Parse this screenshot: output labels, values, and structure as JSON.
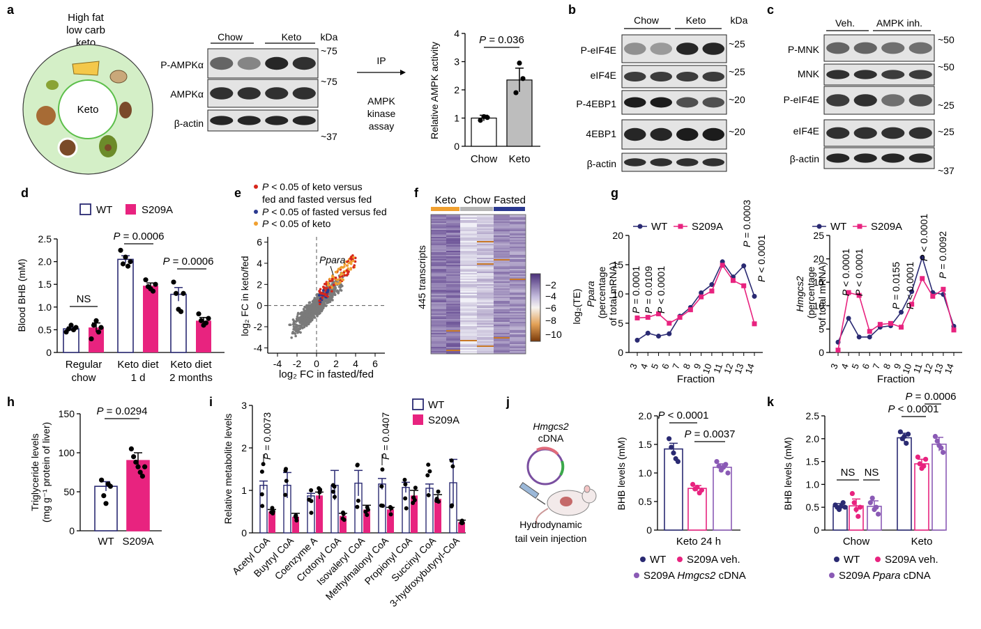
{
  "colors": {
    "wt": "#2a2a72",
    "s209a": "#e8237f",
    "hmgcs2": "#8a5ab5",
    "gray": "#6b6b6b",
    "sig_red": "#d7261b",
    "sig_blue": "#2b3990",
    "sig_orange": "#f0a030",
    "heat_dark": "#5a3d8a",
    "heat_light": "#f2f2f8",
    "heat_orange": "#c87826"
  },
  "panels": {
    "a": "a",
    "b": "b",
    "c": "c",
    "d": "d",
    "e": "e",
    "f": "f",
    "g": "g",
    "h": "h",
    "i": "i",
    "j": "j",
    "k": "k"
  },
  "panel_a": {
    "diet_title": [
      "High fat",
      "low carb",
      "keto"
    ],
    "center": "Keto",
    "blot_groups": [
      "Chow",
      "Keto"
    ],
    "blot_rows": [
      "P-AMPKα",
      "AMPKα",
      "β-actin"
    ],
    "kda_header": "kDa",
    "kda_marks": [
      "~75",
      "~75",
      "~37"
    ],
    "arrow_top": "IP",
    "arrow_bottom": [
      "AMPK",
      "kinase",
      "assay"
    ]
  },
  "panel_b": {
    "groups": [
      "Chow",
      "Keto"
    ],
    "rows": [
      "P-eIF4E",
      "eIF4E",
      "P-4EBP1",
      "4EBP1",
      "β-actin"
    ],
    "kda_header": "kDa",
    "kda_marks": [
      "~25",
      "~25",
      "~20",
      "~20"
    ]
  },
  "panel_c": {
    "groups": [
      "Veh.",
      "AMPK inh."
    ],
    "rows": [
      "P-MNK",
      "MNK",
      "P-eIF4E",
      "eIF4E",
      "β-actin"
    ],
    "kda_marks": [
      "~50",
      "~50",
      "~25",
      "~25",
      "~37"
    ]
  },
  "chart_data": [
    {
      "panel": "a",
      "type": "bar",
      "categories": [
        "Chow",
        "Keto"
      ],
      "values": [
        1.0,
        2.35
      ],
      "errors": [
        0.1,
        0.42
      ],
      "points": [
        [
          0.92,
          1.05,
          1.02
        ],
        [
          1.9,
          2.95,
          2.4
        ]
      ],
      "ylabel": "Relative AMPK activity",
      "ylim": [
        0,
        4
      ],
      "yticks": [
        0,
        1,
        2,
        3,
        4
      ],
      "annotation": "P = 0.036"
    },
    {
      "panel": "d",
      "type": "bar",
      "categories": [
        [
          "Regular",
          "chow"
        ],
        [
          "Keto diet",
          "1 d"
        ],
        [
          "Keto diet",
          "2 months"
        ]
      ],
      "series": [
        {
          "name": "WT",
          "values": [
            0.52,
            2.05,
            1.28
          ],
          "errors": [
            0.04,
            0.08,
            0.15
          ]
        },
        {
          "name": "S209A",
          "values": [
            0.55,
            1.47,
            0.7
          ],
          "errors": [
            0.1,
            0.06,
            0.07
          ]
        }
      ],
      "points": [
        [
          [
            0.45,
            0.52,
            0.6,
            0.5,
            0.55
          ],
          [
            0.3,
            0.6,
            0.7,
            0.45,
            0.55
          ]
        ],
        [
          [
            2.25,
            1.95,
            2.1,
            1.9,
            2.0
          ],
          [
            1.6,
            1.45,
            1.4,
            1.35,
            1.5
          ]
        ],
        [
          [
            1.55,
            1.3,
            0.95,
            0.9,
            1.3
          ],
          [
            0.85,
            0.7,
            0.6,
            0.65,
            0.75
          ]
        ]
      ],
      "ylabel": "Blood BHB (mM)",
      "ylim": [
        0,
        2.5
      ],
      "yticks": [
        "0",
        "0.5",
        "1.0",
        "1.5",
        "2.0",
        "2.5"
      ],
      "annotations": [
        "NS",
        "P = 0.0006",
        "P = 0.0006"
      ]
    },
    {
      "panel": "e",
      "type": "scatter",
      "xlabel": "log2 FC in fasted/fed",
      "ylabel": "log2 FC in keto/fed",
      "xlim": [
        -5,
        7
      ],
      "ylim": [
        -4.5,
        6.5
      ],
      "xticks": [
        -4,
        -2,
        0,
        2,
        4,
        6
      ],
      "yticks": [
        -4,
        -2,
        0,
        2,
        4,
        6
      ],
      "legend": [
        "P < 0.05 of keto versus fed and fasted versus fed",
        "P < 0.05 of fasted versus fed",
        "P < 0.05 of keto"
      ],
      "annotation": "Ppara"
    },
    {
      "panel": "f",
      "type": "heatmap",
      "groups": [
        "Keto",
        "Chow",
        "Fasted"
      ],
      "ylabel": "445 transcripts",
      "colorbar_label": "log2(TE)",
      "colorbar_ticks": [
        -2,
        -4,
        -6,
        -8,
        -10
      ]
    },
    {
      "panel": "g-left",
      "type": "line",
      "xlabel": "Fraction",
      "ylabel": "Ppara (percentage of total mRNA)",
      "x": [
        3,
        4,
        5,
        6,
        7,
        8,
        9,
        10,
        11,
        12,
        13,
        14
      ],
      "ylim": [
        0,
        20
      ],
      "yticks": [
        0,
        5,
        10,
        15,
        20
      ],
      "series": [
        {
          "name": "WT",
          "values": [
            2.1,
            3.3,
            2.8,
            3.2,
            6.2,
            7.7,
            10.2,
            11.6,
            15.5,
            12.9,
            14.8,
            9.6
          ]
        },
        {
          "name": "S209A",
          "values": [
            5.9,
            6.0,
            6.6,
            5.0,
            6.0,
            7.3,
            9.5,
            10.5,
            14.9,
            12.3,
            11.4,
            4.9
          ]
        }
      ],
      "pvalues": [
        "P = 0.0001",
        "P = 0.0109",
        "P < 0.0001",
        "P = 0.0003",
        "P < 0.0001"
      ]
    },
    {
      "panel": "g-right",
      "type": "line",
      "xlabel": "Fraction",
      "ylabel": "Hmgcs2 (percentage of total mRNA)",
      "x": [
        3,
        4,
        5,
        6,
        7,
        8,
        9,
        10,
        11,
        12,
        13,
        14
      ],
      "ylim": [
        0,
        25
      ],
      "yticks": [
        0,
        5,
        10,
        15,
        20,
        25
      ],
      "series": [
        {
          "name": "WT",
          "values": [
            2.2,
            7.3,
            3.3,
            3.3,
            5.4,
            5.7,
            8.6,
            13.0,
            20.3,
            12.8,
            12.4,
            5.6
          ]
        },
        {
          "name": "S209A",
          "values": [
            0.5,
            12.8,
            12.2,
            4.5,
            6.0,
            6.2,
            5.4,
            10.3,
            15.8,
            12.0,
            13.5,
            4.8
          ]
        }
      ],
      "pvalues": [
        "P < 0.0001",
        "P < 0.0001",
        "P = 0.0155",
        "P < 0.0001",
        "P < 0.0001",
        "P = 0.0092"
      ]
    },
    {
      "panel": "h",
      "type": "bar",
      "categories": [
        "WT",
        "S209A"
      ],
      "values": [
        57,
        90
      ],
      "errors": [
        6,
        10
      ],
      "points": [
        [
          65,
          45,
          35,
          60,
          57
        ],
        [
          105,
          95,
          88,
          82,
          75,
          70,
          82
        ]
      ],
      "ylabel": "Triglyceride levels (mg g−1 protein of liver)",
      "ylim": [
        0,
        150
      ],
      "yticks": [
        0,
        50,
        100,
        150
      ],
      "annotation": "P = 0.0294"
    },
    {
      "panel": "i",
      "type": "bar",
      "ylabel": "Relative metabolite levels",
      "ylim": [
        0,
        3
      ],
      "yticks": [
        0,
        1,
        2,
        3
      ],
      "categories": [
        "Acetyl CoA",
        "Buytryl CoA",
        "Coenzyme A",
        "Crotonyl CoA",
        "Isovaleryl CoA",
        "Methylmalonyl CoA",
        "Propionyl CoA",
        "Succinyl CoA",
        "3-hydroxybutyryl-CoA"
      ],
      "series": [
        {
          "name": "WT",
          "values": [
            1.12,
            1.12,
            0.87,
            1.12,
            1.17,
            1.15,
            1.07,
            1.05,
            1.18
          ],
          "errors": [
            0.1,
            0.3,
            0.06,
            0.35,
            0.3,
            0.13,
            0.12,
            0.1,
            0.55
          ]
        },
        {
          "name": "S209A",
          "values": [
            0.5,
            0.38,
            0.88,
            0.4,
            0.55,
            0.55,
            0.88,
            0.8,
            0.25
          ],
          "errors": [
            0.05,
            0.08,
            0.08,
            0.06,
            0.1,
            0.05,
            0.12,
            0.1,
            0.05
          ]
        }
      ],
      "pvalues": [
        "P = 0.0073",
        "P = 0.0407"
      ]
    },
    {
      "panel": "j",
      "type": "bar",
      "categories": [
        "WT",
        "S209A veh.",
        "S209A Hmgcs2 cDNA"
      ],
      "xlabel": "Keto 24 h",
      "values": [
        1.42,
        0.73,
        1.1
      ],
      "errors": [
        0.1,
        0.05,
        0.06
      ],
      "points": [
        [
          1.6,
          1.45,
          1.35,
          1.25,
          1.2
        ],
        [
          0.8,
          0.72,
          0.75,
          0.65,
          0.7
        ],
        [
          1.2,
          1.12,
          1.05,
          1.1,
          1.15,
          1.0
        ]
      ],
      "ylabel": "BHB levels (mM)",
      "ylim": [
        0,
        2
      ],
      "yticks": [
        "0",
        "0.5",
        "1.0",
        "1.5",
        "2.0"
      ],
      "annotations": [
        "P < 0.0001",
        "P = 0.0037"
      ],
      "legend": [
        "WT",
        "S209A veh.",
        "S209A Hmgcs2 cDNA"
      ],
      "illustration": {
        "title": [
          "Hmgcs2",
          "cDNA"
        ],
        "caption": [
          "Hydrodynamic",
          "tail vein injection"
        ]
      }
    },
    {
      "panel": "k",
      "type": "bar",
      "groups": [
        "Chow",
        "Keto"
      ],
      "ylabel": "BHB levels (mM)",
      "ylim": [
        0,
        2.5
      ],
      "yticks": [
        "0",
        "0.5",
        "1.0",
        "1.5",
        "2.0",
        "2.5"
      ],
      "series": [
        {
          "name": "WT",
          "values": [
            0.52,
            2.02
          ],
          "errors": [
            0.06,
            0.1
          ]
        },
        {
          "name": "S209A veh.",
          "values": [
            0.53,
            1.45
          ],
          "errors": [
            0.15,
            0.1
          ]
        },
        {
          "name": "S209A Ppara cDNA",
          "values": [
            0.52,
            1.88
          ],
          "errors": [
            0.12,
            0.15
          ]
        }
      ],
      "annotations": [
        "NS",
        "NS",
        "P < 0.0001",
        "P = 0.0006"
      ],
      "legend": [
        "WT",
        "S209A veh.",
        "S209A Ppara cDNA"
      ]
    }
  ]
}
